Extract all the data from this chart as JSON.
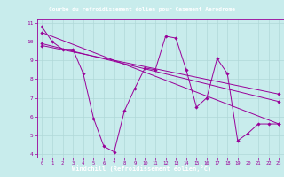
{
  "title": "Courbe du refroidissement éolien pour Casement Aerodrome",
  "xlabel": "Windchill (Refroidissement éolien,°C)",
  "bg_color": "#c8ecec",
  "title_bg": "#800080",
  "title_fg": "#ffffff",
  "line_color": "#990099",
  "grid_color": "#b0d8d8",
  "xlim": [
    -0.5,
    23.5
  ],
  "ylim": [
    3.8,
    11.2
  ],
  "yticks": [
    4,
    5,
    6,
    7,
    8,
    9,
    10,
    11
  ],
  "xticks": [
    0,
    1,
    2,
    3,
    4,
    5,
    6,
    7,
    8,
    9,
    10,
    11,
    12,
    13,
    14,
    15,
    16,
    17,
    18,
    19,
    20,
    21,
    22,
    23
  ],
  "series1_x": [
    0,
    1,
    2,
    3,
    4,
    5,
    6,
    7,
    8,
    9,
    10,
    11,
    12,
    13,
    14,
    15,
    16,
    17,
    18,
    19,
    20,
    21,
    22,
    23
  ],
  "series1_y": [
    10.8,
    10.0,
    9.6,
    9.6,
    8.3,
    5.9,
    4.4,
    4.1,
    6.3,
    7.5,
    8.6,
    8.5,
    10.3,
    10.2,
    8.5,
    6.5,
    7.0,
    9.1,
    8.3,
    4.7,
    5.1,
    5.6,
    5.6,
    5.6
  ],
  "series2_x": [
    0,
    23
  ],
  "series2_y": [
    10.5,
    5.6
  ],
  "series3_x": [
    0,
    23
  ],
  "series3_y": [
    9.9,
    6.8
  ],
  "series4_x": [
    0,
    23
  ],
  "series4_y": [
    9.8,
    7.2
  ]
}
